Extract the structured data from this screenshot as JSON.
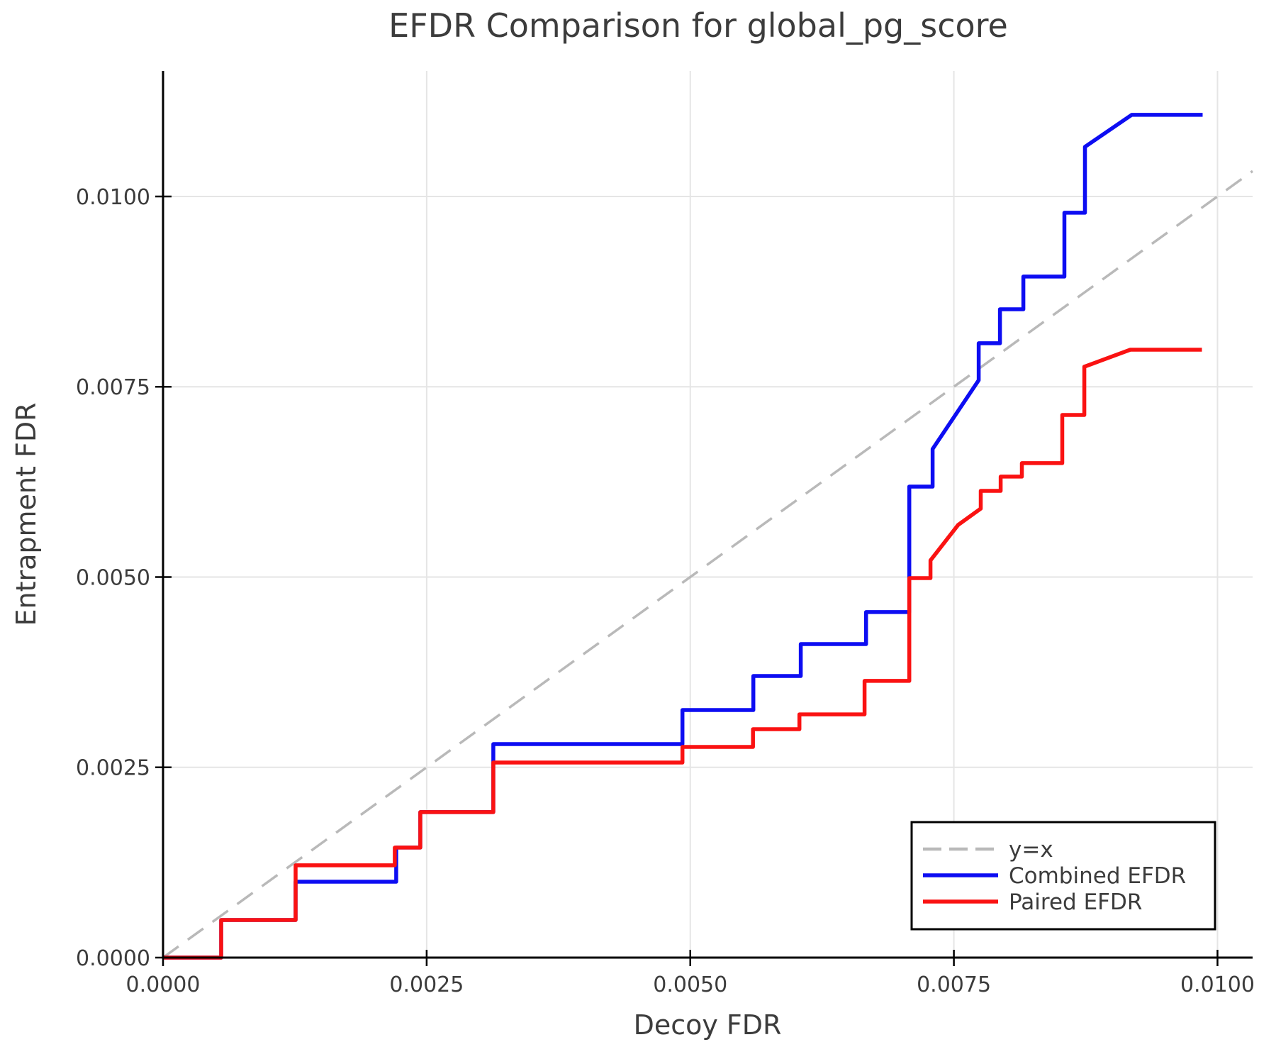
{
  "chart_data": {
    "type": "line",
    "title": "EFDR Comparison for global_pg_score",
    "xlabel": "Decoy FDR",
    "ylabel": "Entrapment FDR",
    "xlim": [
      0,
      0.010333
    ],
    "ylim": [
      0,
      0.011649
    ],
    "grid": true,
    "x_ticks": {
      "values": [
        0,
        0.0025,
        0.005,
        0.0075,
        0.01
      ],
      "labels": [
        "0.0000",
        "0.0025",
        "0.0050",
        "0.0075",
        "0.0100"
      ]
    },
    "y_ticks": {
      "values": [
        0,
        0.0025,
        0.005,
        0.0075,
        0.01
      ],
      "labels": [
        "0.0000",
        "0.0025",
        "0.0050",
        "0.0075",
        "0.0100"
      ]
    },
    "colors": {
      "identity": "#b9b9b9",
      "combined": "#0d0df2",
      "paired": "#fa1212",
      "text": "#3c3c3c",
      "grid": "#e5e5e5"
    },
    "legend": {
      "position": "lower right",
      "entries": [
        {
          "label": "y=x",
          "color": "#b9b9b9",
          "dashed": true
        },
        {
          "label": "Combined EFDR",
          "color": "#0d0df2",
          "dashed": false
        },
        {
          "label": "Paired EFDR",
          "color": "#fa1212",
          "dashed": false
        }
      ]
    },
    "series": [
      {
        "name": "y=x",
        "style": "dashed",
        "color": "#b9b9b9",
        "width": 3.5,
        "points": [
          [
            0,
            0
          ],
          [
            0.010333,
            0.010333
          ]
        ]
      },
      {
        "name": "Combined EFDR",
        "style": "solid",
        "color": "#0d0df2",
        "width": 5.5,
        "points": [
          [
            0,
            0
          ],
          [
            0.000551,
            0
          ],
          [
            0.000551,
            0.000494
          ],
          [
            0.001257,
            0.000494
          ],
          [
            0.001257,
            0.000997
          ],
          [
            0.002211,
            0.000997
          ],
          [
            0.002211,
            0.001445
          ],
          [
            0.00244,
            0.001445
          ],
          [
            0.00244,
            0.001911
          ],
          [
            0.003132,
            0.001911
          ],
          [
            0.003132,
            0.002805
          ],
          [
            0.004926,
            0.002805
          ],
          [
            0.004926,
            0.003252
          ],
          [
            0.005598,
            0.003252
          ],
          [
            0.005598,
            0.0037
          ],
          [
            0.006048,
            0.0037
          ],
          [
            0.006048,
            0.004119
          ],
          [
            0.006667,
            0.004119
          ],
          [
            0.006667,
            0.004539
          ],
          [
            0.007077,
            0.004539
          ],
          [
            0.007077,
            0.006188
          ],
          [
            0.007298,
            0.006188
          ],
          [
            0.007298,
            0.006682
          ],
          [
            0.007735,
            0.007586
          ],
          [
            0.007735,
            0.008071
          ],
          [
            0.007937,
            0.008071
          ],
          [
            0.007937,
            0.008518
          ],
          [
            0.008159,
            0.008518
          ],
          [
            0.008159,
            0.008947
          ],
          [
            0.008548,
            0.008947
          ],
          [
            0.008548,
            0.009786
          ],
          [
            0.008743,
            0.009786
          ],
          [
            0.008743,
            0.010652
          ],
          [
            0.009187,
            0.011072
          ],
          [
            0.009859,
            0.011072
          ]
        ]
      },
      {
        "name": "Paired EFDR",
        "style": "solid",
        "color": "#fa1212",
        "width": 5.5,
        "points": [
          [
            0,
            0
          ],
          [
            0.000551,
            0
          ],
          [
            0.000551,
            0.000494
          ],
          [
            0.001257,
            0.000494
          ],
          [
            0.001257,
            0.001212
          ],
          [
            0.002198,
            0.001212
          ],
          [
            0.002198,
            0.001445
          ],
          [
            0.00244,
            0.001445
          ],
          [
            0.00244,
            0.001911
          ],
          [
            0.003132,
            0.001911
          ],
          [
            0.003132,
            0.002563
          ],
          [
            0.004926,
            0.002563
          ],
          [
            0.004926,
            0.002768
          ],
          [
            0.005595,
            0.002768
          ],
          [
            0.005595,
            0.003001
          ],
          [
            0.006035,
            0.003001
          ],
          [
            0.006035,
            0.003196
          ],
          [
            0.006653,
            0.003196
          ],
          [
            0.006653,
            0.003635
          ],
          [
            0.007077,
            0.003635
          ],
          [
            0.007077,
            0.004986
          ],
          [
            0.007278,
            0.004986
          ],
          [
            0.007278,
            0.005219
          ],
          [
            0.00754,
            0.005685
          ],
          [
            0.007755,
            0.005899
          ],
          [
            0.007755,
            0.006132
          ],
          [
            0.007944,
            0.006132
          ],
          [
            0.007944,
            0.006319
          ],
          [
            0.008145,
            0.006319
          ],
          [
            0.008145,
            0.006496
          ],
          [
            0.008528,
            0.006496
          ],
          [
            0.008528,
            0.007129
          ],
          [
            0.008737,
            0.007129
          ],
          [
            0.008737,
            0.007763
          ],
          [
            0.009173,
            0.007987
          ],
          [
            0.009852,
            0.007987
          ]
        ]
      }
    ]
  }
}
